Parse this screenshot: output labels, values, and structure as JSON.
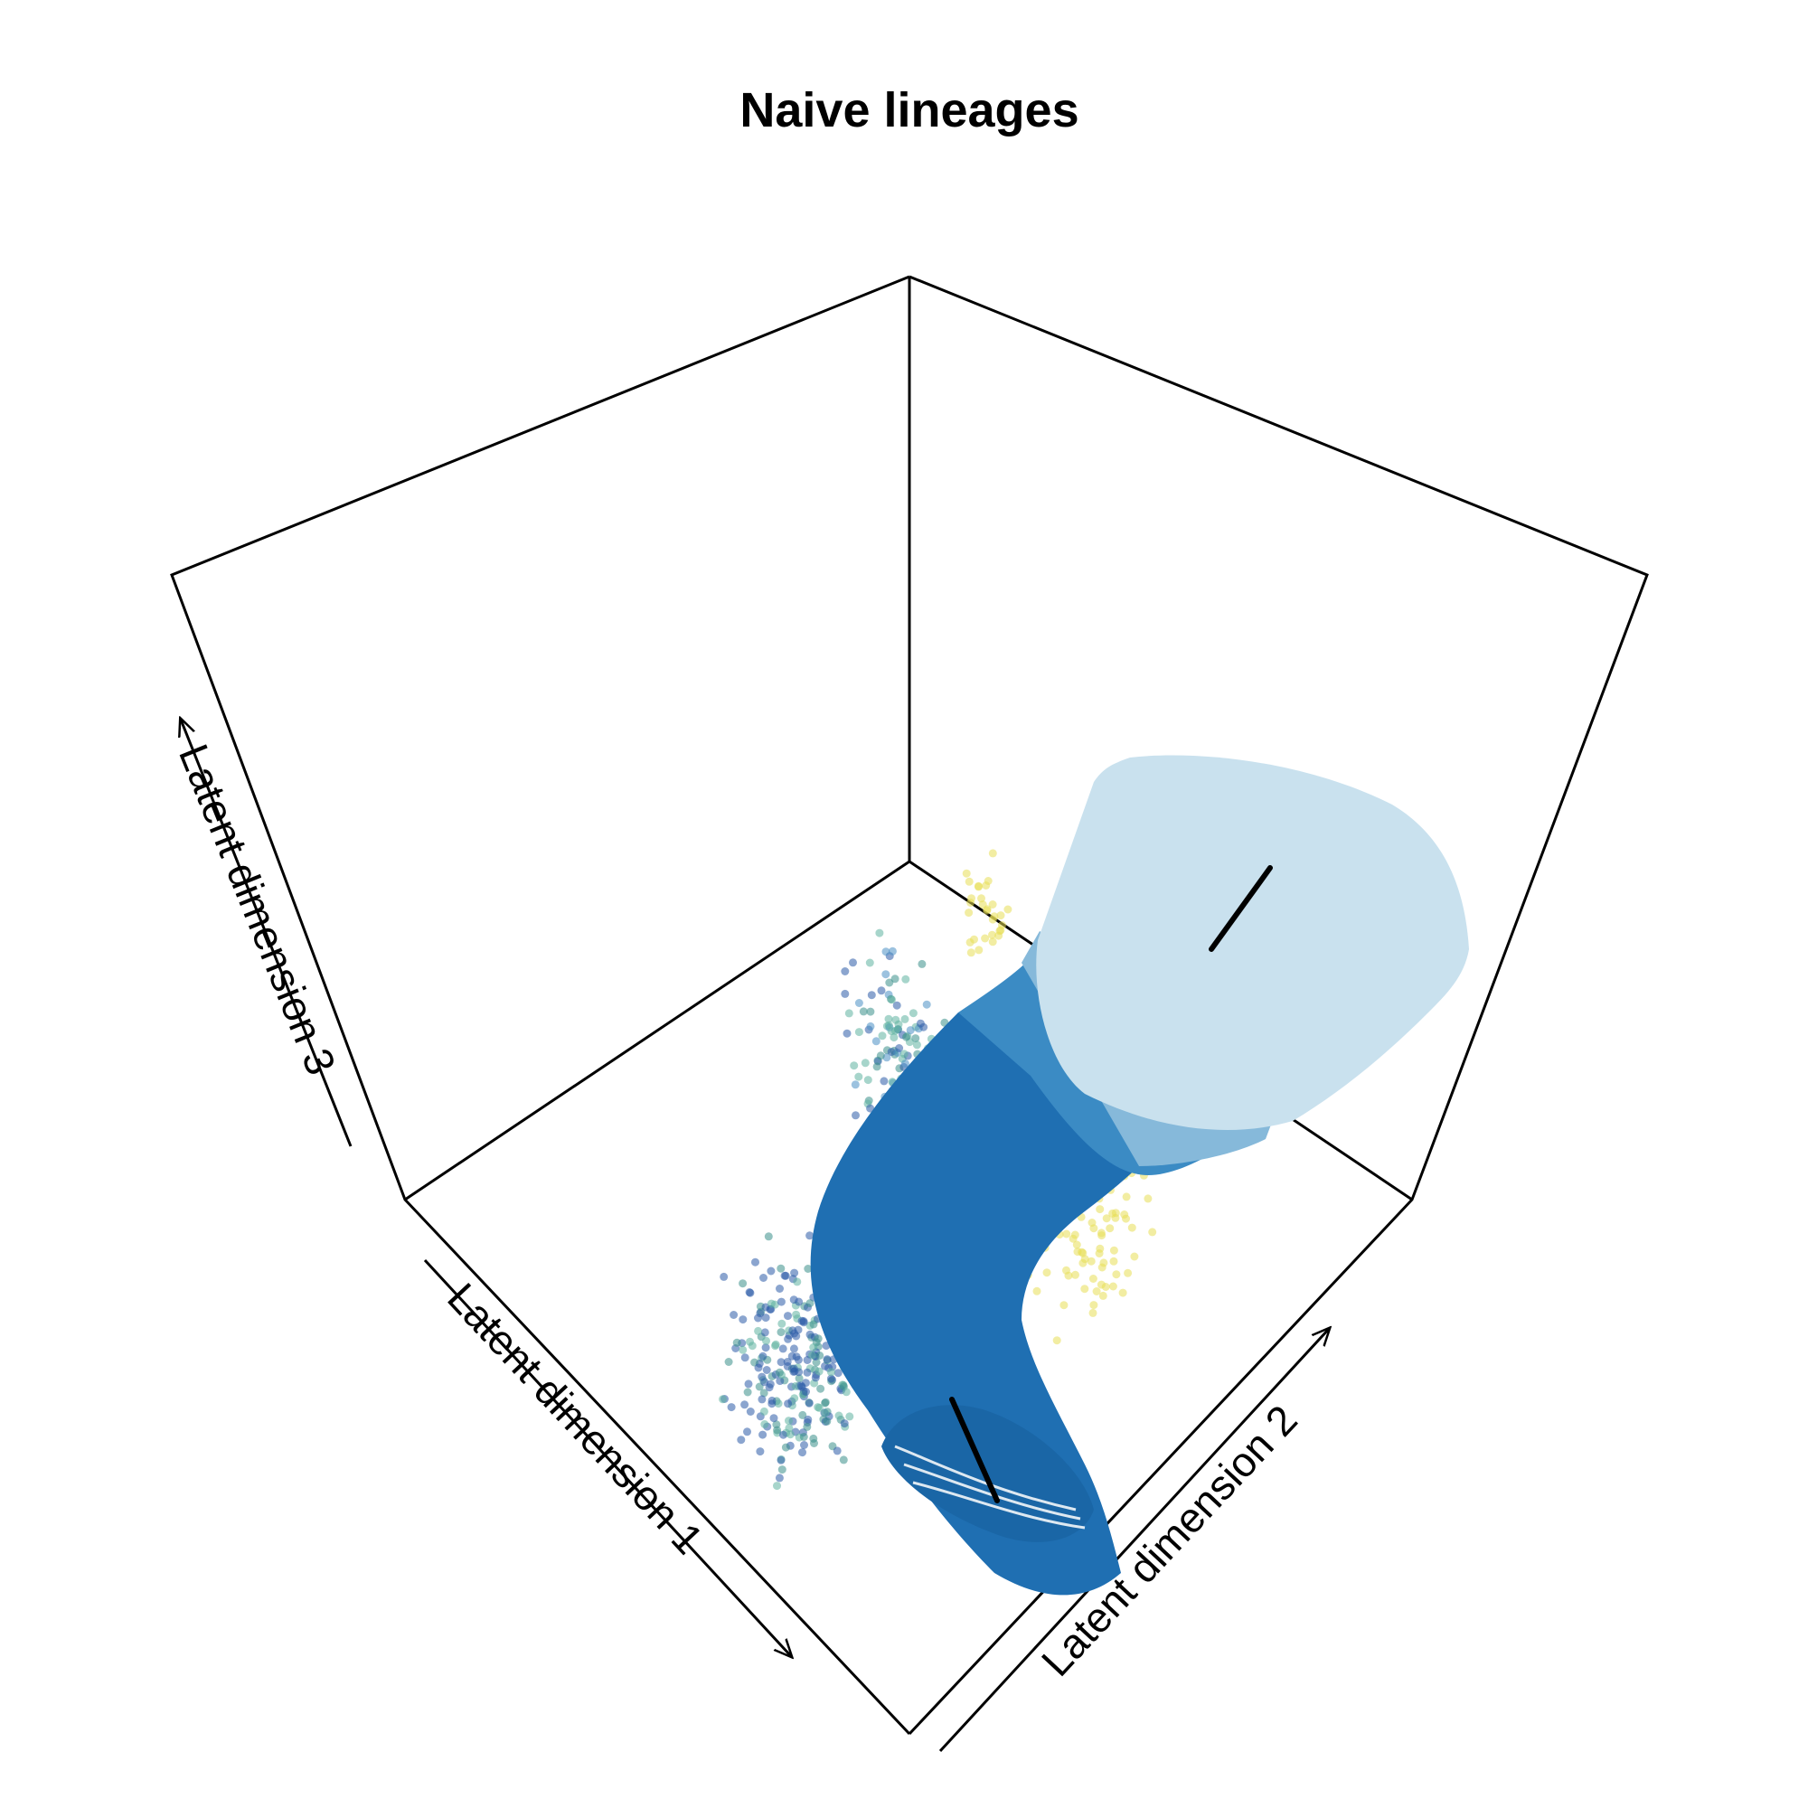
{
  "chart_data": {
    "type": "scatter",
    "projection": "3d-perspective-box",
    "title": "Naive lineages",
    "axes": {
      "x": {
        "label": "Latent dimension 1",
        "direction": "arrow toward viewer-right-down"
      },
      "y": {
        "label": "Latent dimension 2",
        "direction": "arrow toward right-up"
      },
      "z": {
        "label": "Latent dimension 3",
        "direction": "arrow upward"
      }
    },
    "grid": false,
    "legend": null,
    "point_colors": [
      "#2b5ba8",
      "#3b8f8a",
      "#5fb3a0",
      "#e8de55",
      "#4a90c4"
    ],
    "tube_colors": [
      "#1f6fb2",
      "#3b8bc4",
      "#86b9da",
      "#c9e1ee"
    ],
    "lineage_lines": 2
  }
}
